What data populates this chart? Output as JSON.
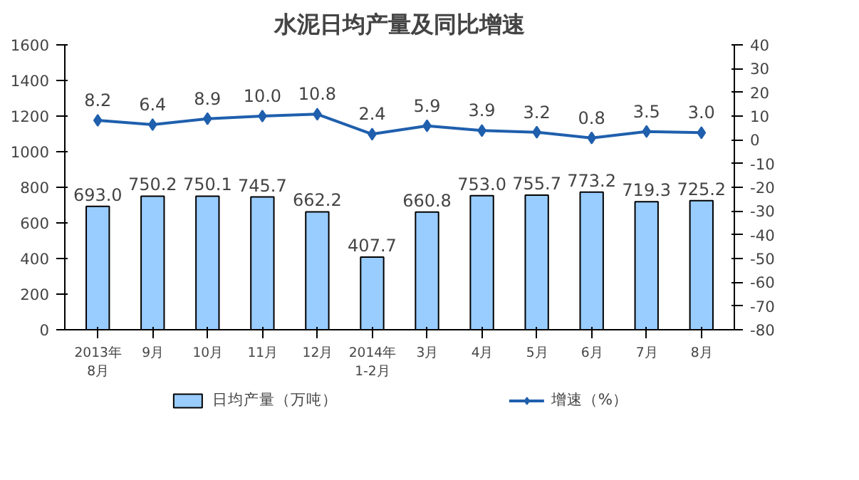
{
  "chart_data": {
    "type": "bar",
    "title": "水泥日均产量及同比增速",
    "categories": [
      "2013年\n8月",
      "9月",
      "10月",
      "11月",
      "12月",
      "2014年\n1-2月",
      "3月",
      "4月",
      "5月",
      "6月",
      "7月",
      "8月"
    ],
    "series": [
      {
        "name": "日均产量（万吨）",
        "color": "#99ccff",
        "values": [
          693.0,
          750.2,
          750.1,
          745.7,
          662.2,
          407.7,
          660.8,
          753.0,
          755.7,
          773.2,
          719.3,
          725.2
        ],
        "value_labels": [
          "693.0",
          "750.2",
          "750.1",
          "745.7",
          "662.2",
          "407.7",
          "660.8",
          "753.0",
          "755.7",
          "773.2",
          "719.3",
          "725.2"
        ]
      },
      {
        "name": "增速（%）",
        "type": "line",
        "axis": "y2",
        "color": "#1f5fad",
        "values": [
          8.2,
          6.4,
          8.9,
          10.0,
          10.8,
          2.4,
          5.9,
          3.9,
          3.2,
          0.8,
          3.5,
          3.0
        ],
        "value_labels": [
          "8.2",
          "6.4",
          "8.9",
          "10.0",
          "10.8",
          "2.4",
          "5.9",
          "3.9",
          "3.2",
          "0.8",
          "3.5",
          "3.0"
        ]
      }
    ],
    "ylim": [
      0,
      1600
    ],
    "yticks": [
      0,
      200,
      400,
      600,
      800,
      1000,
      1200,
      1400,
      1600
    ],
    "y2lim": [
      -80,
      40
    ],
    "y2ticks": [
      -80,
      -70,
      -60,
      -50,
      -40,
      -30,
      -20,
      -10,
      0,
      10,
      20,
      30,
      40
    ],
    "data_labels": true,
    "marker": "diamond",
    "grid": false,
    "legend": "bottom"
  }
}
